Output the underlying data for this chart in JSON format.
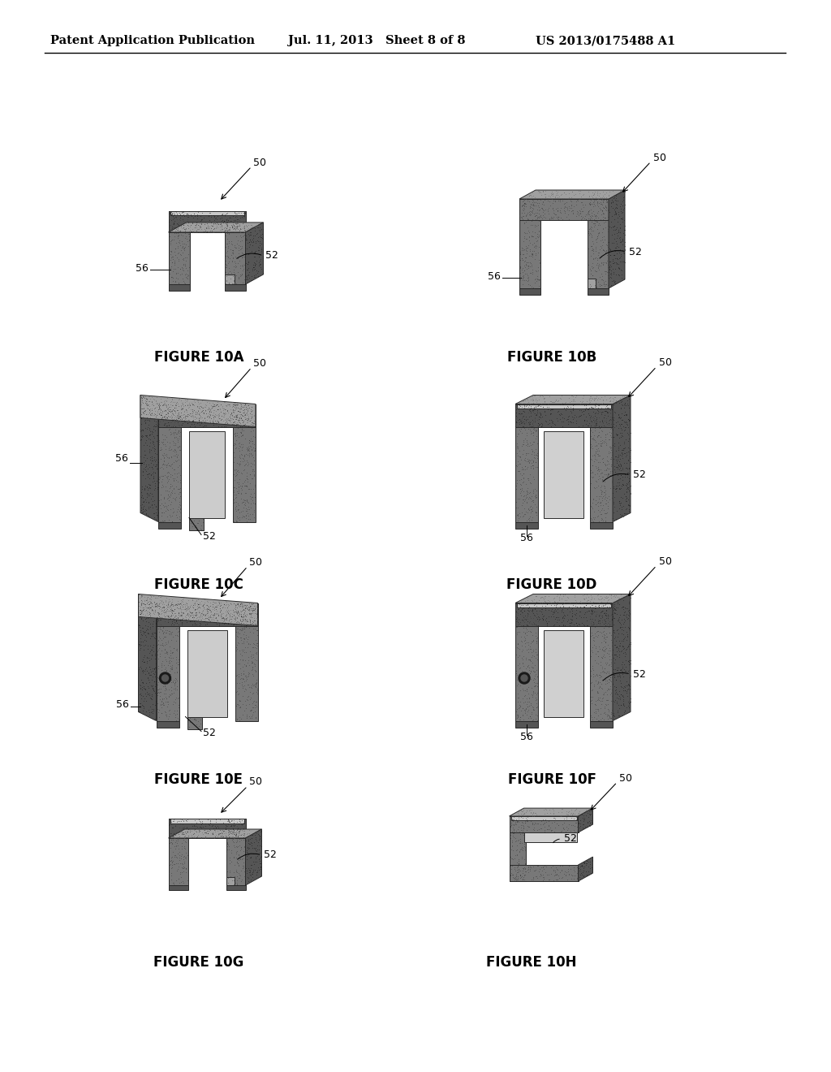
{
  "background_color": "#ffffff",
  "header_left": "Patent Application Publication",
  "header_mid": "Jul. 11, 2013   Sheet 8 of 8",
  "header_right": "US 2013/0175488 A1",
  "header_fontsize": 10.5,
  "label_fontsize": 12,
  "ref_fontsize": 9,
  "page_width": 10.24,
  "page_height": 13.2,
  "stipple_color": "#787878",
  "stipple_density": 0.45
}
